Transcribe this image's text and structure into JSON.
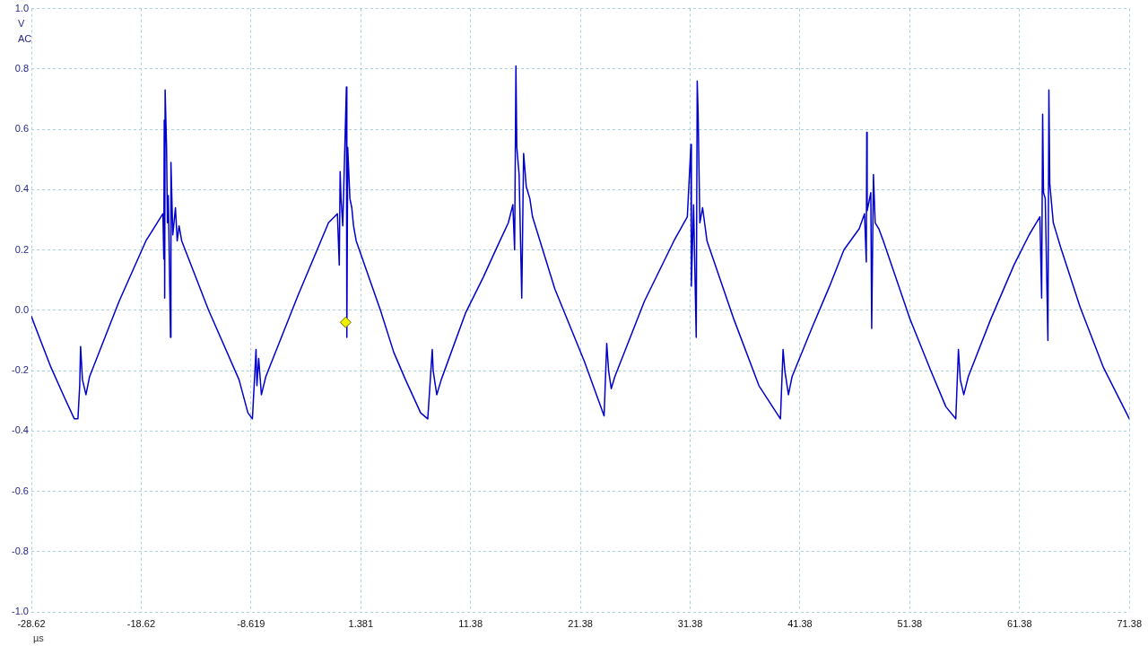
{
  "chart_data": {
    "type": "line",
    "xlabel": "µs",
    "ylabel": "V",
    "annotations": [
      "AC"
    ],
    "xlim": [
      -28.62,
      71.38
    ],
    "xticks": [
      -28.62,
      -18.62,
      -8.619,
      1.381,
      11.38,
      21.38,
      31.38,
      41.38,
      51.38,
      61.38,
      71.38
    ],
    "ylim": [
      -1,
      1
    ],
    "yticks": [
      {
        "value": -1,
        "label": "-1.0"
      },
      -0.8,
      -0.6,
      -0.4,
      -0.2,
      {
        "value": 0,
        "label": "0.0"
      },
      0.2,
      0.4,
      0.6,
      0.8,
      {
        "value": 1,
        "label": "1.0"
      }
    ],
    "grid": true,
    "x": [
      -28.62,
      -28.21,
      -26.83,
      -25.6,
      -24.71,
      -24.38,
      -24.22,
      -24.14,
      -23.97,
      -23.65,
      -23.32,
      -20.63,
      -18.19,
      -16.64,
      -16.56,
      -16.52,
      -16.48,
      -16.44,
      -16.31,
      -16.23,
      -16.15,
      -15.95,
      -15.91,
      -15.74,
      -15.5,
      -15.34,
      -15.17,
      -14.93,
      -12.48,
      -9.71,
      -8.9,
      -8.49,
      -8.16,
      -8.08,
      -7.92,
      -7.67,
      -7.27,
      -4.33,
      -1.56,
      -0.75,
      -0.58,
      -0.5,
      -0.42,
      -0.26,
      0.07,
      0.11,
      0.19,
      0.39,
      0.56,
      0.72,
      0.96,
      3.17,
      4.39,
      5.45,
      6.83,
      7.48,
      7.89,
      7.97,
      8.3,
      8.71,
      10.91,
      12.54,
      13.92,
      14.82,
      15.23,
      15.39,
      15.51,
      15.59,
      15.8,
      16.04,
      16.21,
      16.45,
      16.78,
      17.02,
      19.06,
      21.75,
      23.54,
      23.78,
      23.95,
      24.19,
      24.52,
      27.21,
      29.9,
      31.12,
      31.45,
      31.49,
      31.69,
      31.93,
      32.02,
      32.1,
      32.26,
      32.51,
      32.91,
      35.36,
      37.64,
      39.6,
      39.84,
      40.0,
      40.33,
      40.66,
      42.45,
      44.08,
      45.38,
      46.77,
      47.26,
      47.42,
      47.46,
      47.5,
      47.83,
      47.91,
      48.07,
      48.23,
      48.56,
      48.97,
      51.41,
      53.29,
      54.67,
      55.57,
      55.81,
      55.98,
      56.3,
      56.71,
      58.75,
      60.87,
      62.25,
      63.23,
      63.39,
      63.48,
      63.56,
      63.72,
      63.96,
      64.05,
      64.13,
      64.45,
      64.7,
      65.11,
      66.9,
      69.02,
      71.38
    ],
    "series": [
      {
        "color": "#0000cd",
        "values": [
          -0.02,
          -0.06,
          -0.19,
          -0.29,
          -0.36,
          -0.36,
          -0.25,
          -0.12,
          -0.23,
          -0.28,
          -0.22,
          0.03,
          0.23,
          0.32,
          0.17,
          0.63,
          0.04,
          0.73,
          0.54,
          0.29,
          0.38,
          -0.09,
          0.49,
          0.25,
          0.34,
          0.23,
          0.28,
          0.23,
          0.0,
          -0.23,
          -0.34,
          -0.36,
          -0.13,
          -0.25,
          -0.16,
          -0.28,
          -0.22,
          0.05,
          0.29,
          0.32,
          0.15,
          0.46,
          0.37,
          0.28,
          0.74,
          -0.09,
          0.54,
          0.37,
          0.34,
          0.28,
          0.23,
          0.0,
          -0.14,
          -0.23,
          -0.34,
          -0.36,
          -0.13,
          -0.2,
          -0.28,
          -0.23,
          -0.01,
          0.11,
          0.22,
          0.29,
          0.35,
          0.2,
          0.81,
          0.54,
          0.45,
          0.04,
          0.52,
          0.41,
          0.37,
          0.31,
          0.07,
          -0.17,
          -0.35,
          -0.11,
          -0.2,
          -0.26,
          -0.22,
          0.03,
          0.23,
          0.31,
          0.55,
          0.08,
          0.35,
          -0.09,
          0.76,
          0.66,
          0.29,
          0.34,
          0.23,
          -0.03,
          -0.25,
          -0.36,
          -0.13,
          -0.2,
          -0.28,
          -0.22,
          -0.06,
          0.08,
          0.2,
          0.27,
          0.32,
          0.16,
          0.59,
          0.33,
          0.39,
          -0.06,
          0.45,
          0.29,
          0.27,
          0.23,
          -0.03,
          -0.2,
          -0.32,
          -0.36,
          -0.13,
          -0.23,
          -0.28,
          -0.22,
          -0.03,
          0.15,
          0.25,
          0.31,
          0.04,
          0.65,
          0.39,
          0.37,
          -0.1,
          0.73,
          0.42,
          0.29,
          0.26,
          0.21,
          0.01,
          -0.19,
          -0.36
        ]
      },
      {
        "type": "scatter",
        "x": [
          0
        ],
        "values": [
          -0.04
        ],
        "color": "#eeee00",
        "marker": "diamond"
      }
    ]
  }
}
